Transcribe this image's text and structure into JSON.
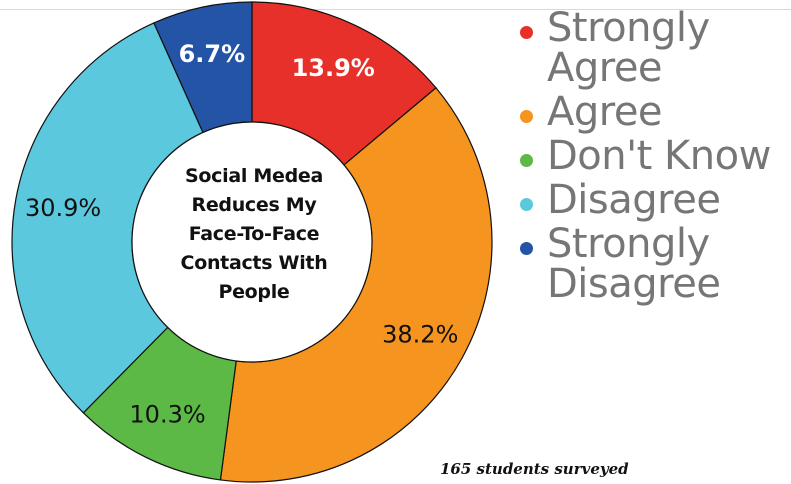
{
  "chart_data": {
    "type": "pie",
    "donut": true,
    "center_title_lines": [
      "Social Medea",
      "Reduces My",
      "Face-To-Face",
      "Contacts With",
      "People"
    ],
    "legend_position": "right",
    "slices": [
      {
        "label": "Strongly Agree",
        "value": 13.9,
        "display": "13.9%",
        "color": "#e8302a",
        "label_color": "#ffffff"
      },
      {
        "label": "Agree",
        "value": 38.2,
        "display": "38.2%",
        "color": "#f5941e",
        "label_color": "#111111"
      },
      {
        "label": "Don't Know",
        "value": 10.3,
        "display": "10.3%",
        "color": "#5cb946",
        "label_color": "#111111"
      },
      {
        "label": "Disagree",
        "value": 30.9,
        "display": "30.9%",
        "color": "#5cc8de",
        "label_color": "#111111"
      },
      {
        "label": "Strongly Disagree",
        "value": 6.7,
        "display": "6.7%",
        "color": "#2354a5",
        "label_color": "#ffffff"
      }
    ],
    "legend_lines": [
      [
        "Strongly",
        "Agree"
      ],
      [
        "Agree"
      ],
      [
        "Don't Know"
      ],
      [
        "Disagree"
      ],
      [
        "Strongly",
        "Disagree"
      ]
    ],
    "note": "165 students surveyed"
  }
}
